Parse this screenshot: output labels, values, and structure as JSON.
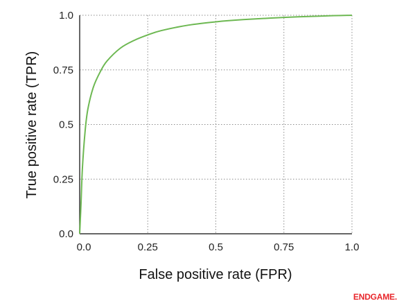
{
  "chart_data": {
    "type": "line",
    "xlabel": "False positive rate (FPR)",
    "ylabel": "True positive rate (TPR)",
    "xlim": [
      0,
      1
    ],
    "ylim": [
      0,
      1
    ],
    "x_ticks": [
      "0.0",
      "0.25",
      "0.5",
      "0.75",
      "1.0"
    ],
    "y_ticks": [
      "0.0",
      "0.25",
      "0.5",
      "0.75",
      "1.0"
    ],
    "grid": true,
    "series": [
      {
        "x": [
          0.0,
          0.005,
          0.01,
          0.02,
          0.03,
          0.05,
          0.075,
          0.1,
          0.15,
          0.2,
          0.25,
          0.3,
          0.4,
          0.5,
          0.6,
          0.75,
          0.9,
          1.0
        ],
        "y": [
          0.0,
          0.14,
          0.3,
          0.47,
          0.57,
          0.67,
          0.74,
          0.79,
          0.85,
          0.885,
          0.91,
          0.93,
          0.955,
          0.97,
          0.98,
          0.99,
          0.997,
          1.0
        ]
      }
    ],
    "colors": {
      "curve": "#6db852",
      "grid": "#8c8c8c",
      "axis": "#333333"
    }
  },
  "brand": {
    "logo_text": "ENDGAME."
  }
}
